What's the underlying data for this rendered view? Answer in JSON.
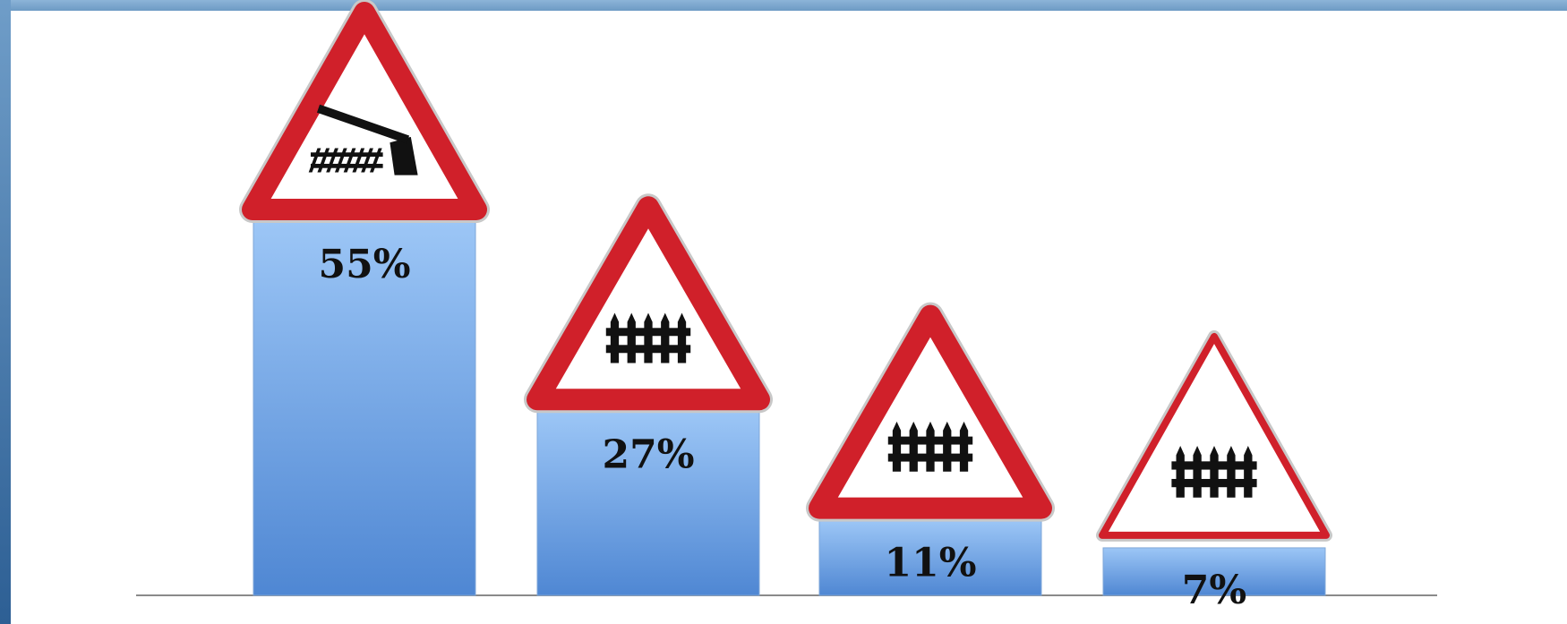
{
  "chart_data": {
    "type": "bar",
    "categories": [
      "railway-crossing-with-barrier-sign",
      "railway-crossing-without-barrier-sign",
      "railway-crossing-without-barrier-sign-2",
      "railway-crossing-without-barrier-sign-3"
    ],
    "values": [
      55,
      27,
      11,
      7
    ],
    "labels": [
      "55%",
      "27%",
      "11%",
      "7%"
    ],
    "ylim": [
      0,
      55
    ],
    "grid": false,
    "legend": "none",
    "colors": {
      "bar_top": "#9cc6f6",
      "bar_bottom": "#4f87d3",
      "sign_border": "#d0202a",
      "sign_fill": "#ffffff",
      "symbol": "#111111",
      "baseline": "#8a8a8a"
    }
  }
}
